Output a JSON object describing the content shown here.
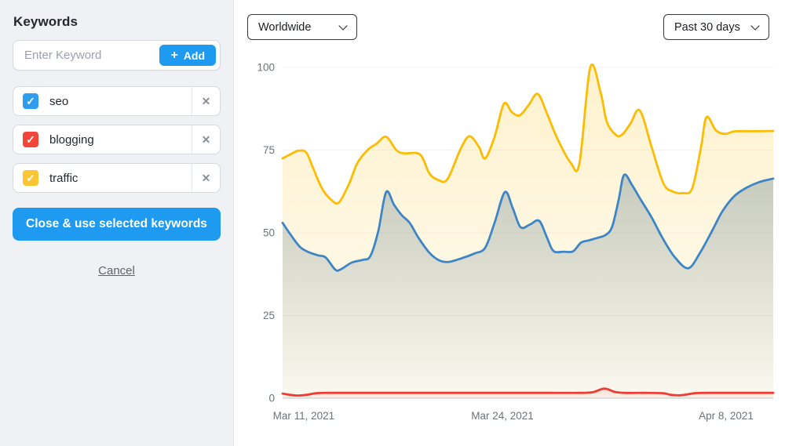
{
  "sidebar": {
    "title": "Keywords",
    "input": {
      "placeholder": "Enter Keyword",
      "add_label": "Add",
      "add_icon": "+"
    },
    "check_icon": "✓",
    "remove_icon": "✕",
    "keywords": [
      {
        "label": "seo",
        "color": "#2e9df0",
        "checked": true
      },
      {
        "label": "blogging",
        "color": "#f4453a",
        "checked": true
      },
      {
        "label": "traffic",
        "color": "#fdc433",
        "checked": true
      }
    ],
    "close_button": "Close & use selected keywords",
    "cancel_link": "Cancel"
  },
  "toolbar": {
    "region_select": "Worldwide",
    "period_select": "Past 30 days"
  },
  "chart_data": {
    "type": "area",
    "title": "",
    "xlabel": "",
    "ylabel": "",
    "ylim": [
      0,
      100
    ],
    "y_ticks": [
      0,
      25,
      50,
      75,
      100
    ],
    "grid": true,
    "legend": "none",
    "x_ticks": [
      {
        "label": "Mar 11, 2021",
        "pos": 4.3
      },
      {
        "label": "Mar 24, 2021",
        "pos": 44.8
      },
      {
        "label": "Apr 8, 2021",
        "pos": 90.4
      }
    ],
    "axis_color": "#d9dcdf",
    "grid_color": "#f2f3f4",
    "tick_color": "#6d7378",
    "series": [
      {
        "name": "traffic",
        "color": "#fbbc04",
        "fill_top": "rgba(251,188,4,0.20)",
        "fill_bottom": "rgba(251,188,4,0.05)",
        "points": [
          [
            0,
            72.5
          ],
          [
            1.3,
            73.5
          ],
          [
            3.2,
            74.8
          ],
          [
            4.8,
            74.3
          ],
          [
            6.1,
            70
          ],
          [
            8,
            63.5
          ],
          [
            9.9,
            60
          ],
          [
            11.5,
            59.2
          ],
          [
            13.6,
            65
          ],
          [
            15.2,
            71
          ],
          [
            17.3,
            75
          ],
          [
            19.2,
            77
          ],
          [
            21.1,
            79
          ],
          [
            23.2,
            75
          ],
          [
            24.8,
            74
          ],
          [
            28,
            73.7
          ],
          [
            29.9,
            68
          ],
          [
            31.7,
            66
          ],
          [
            33.6,
            66.2
          ],
          [
            36.3,
            75.4
          ],
          [
            38.1,
            79.2
          ],
          [
            40,
            76
          ],
          [
            41.3,
            72.5
          ],
          [
            43.2,
            79
          ],
          [
            45.1,
            89
          ],
          [
            46.7,
            86.5
          ],
          [
            48.3,
            85.5
          ],
          [
            50.1,
            88.5
          ],
          [
            52,
            92
          ],
          [
            53.9,
            86
          ],
          [
            56,
            78.5
          ],
          [
            58.7,
            71.2
          ],
          [
            60.5,
            71
          ],
          [
            62.7,
            100
          ],
          [
            64.8,
            92.5
          ],
          [
            66.1,
            83.5
          ],
          [
            68,
            79.5
          ],
          [
            69.3,
            79.8
          ],
          [
            70.9,
            83
          ],
          [
            72.8,
            87
          ],
          [
            75.2,
            76
          ],
          [
            77.6,
            65
          ],
          [
            79.5,
            62.5
          ],
          [
            81.6,
            62
          ],
          [
            83.5,
            63.5
          ],
          [
            85.3,
            76
          ],
          [
            86.4,
            85
          ],
          [
            88.3,
            81
          ],
          [
            90.1,
            79.9
          ],
          [
            92.3,
            80.7
          ],
          [
            96,
            80.7
          ],
          [
            100,
            80.8
          ]
        ]
      },
      {
        "name": "seo",
        "color": "#3e85c6",
        "fill_top": "rgba(69,105,125,0.30)",
        "fill_bottom": "rgba(69,105,125,0.02)",
        "points": [
          [
            0,
            53
          ],
          [
            1.6,
            49.5
          ],
          [
            3.5,
            45.8
          ],
          [
            5.1,
            44.3
          ],
          [
            7.2,
            43.2
          ],
          [
            8.8,
            42.5
          ],
          [
            10.7,
            38.9
          ],
          [
            11.8,
            38.9
          ],
          [
            14.1,
            41
          ],
          [
            16.3,
            41.8
          ],
          [
            17.9,
            43
          ],
          [
            19.5,
            50.5
          ],
          [
            21.1,
            62.3
          ],
          [
            22.7,
            58.5
          ],
          [
            24.3,
            55.3
          ],
          [
            25.9,
            53
          ],
          [
            27.7,
            48.5
          ],
          [
            29.9,
            44
          ],
          [
            32,
            41.6
          ],
          [
            33.9,
            41.2
          ],
          [
            36.5,
            42.3
          ],
          [
            39.2,
            43.8
          ],
          [
            41.3,
            45.5
          ],
          [
            43.2,
            53
          ],
          [
            45.3,
            62.3
          ],
          [
            46.9,
            57.5
          ],
          [
            48.5,
            51.7
          ],
          [
            50.4,
            52.5
          ],
          [
            52.3,
            53.6
          ],
          [
            53.9,
            48.5
          ],
          [
            55.2,
            44.5
          ],
          [
            57.3,
            44.3
          ],
          [
            59.2,
            44.4
          ],
          [
            60.8,
            47
          ],
          [
            62.4,
            47.7
          ],
          [
            64,
            48.4
          ],
          [
            65.9,
            49.4
          ],
          [
            67.2,
            52
          ],
          [
            68.5,
            60
          ],
          [
            69.6,
            67.5
          ],
          [
            71.2,
            64.5
          ],
          [
            72.8,
            60.5
          ],
          [
            75.2,
            54.7
          ],
          [
            77.6,
            48
          ],
          [
            80,
            42.5
          ],
          [
            82.7,
            39.3
          ],
          [
            85.1,
            44
          ],
          [
            87.5,
            50.5
          ],
          [
            89.6,
            56.4
          ],
          [
            92,
            61
          ],
          [
            94.4,
            63.5
          ],
          [
            97.1,
            65.3
          ],
          [
            100,
            66.4
          ]
        ]
      },
      {
        "name": "blogging",
        "color": "#f03d33",
        "fill_top": "rgba(240,61,51,0.12)",
        "fill_bottom": "rgba(240,61,51,0.03)",
        "points": [
          [
            0,
            1.4
          ],
          [
            1.6,
            1
          ],
          [
            2.9,
            0.8
          ],
          [
            4.8,
            1
          ],
          [
            6.9,
            1.5
          ],
          [
            9.6,
            1.6
          ],
          [
            14.4,
            1.6
          ],
          [
            22.4,
            1.6
          ],
          [
            30.4,
            1.6
          ],
          [
            38.4,
            1.6
          ],
          [
            46.4,
            1.6
          ],
          [
            54.4,
            1.6
          ],
          [
            60.8,
            1.6
          ],
          [
            63.2,
            1.8
          ],
          [
            65.6,
            2.9
          ],
          [
            67.7,
            1.9
          ],
          [
            69.6,
            1.6
          ],
          [
            73.6,
            1.6
          ],
          [
            77.6,
            1.5
          ],
          [
            79.2,
            1
          ],
          [
            81.3,
            0.9
          ],
          [
            84,
            1.5
          ],
          [
            86.4,
            1.6
          ],
          [
            92.8,
            1.6
          ],
          [
            100,
            1.6
          ]
        ]
      }
    ]
  }
}
